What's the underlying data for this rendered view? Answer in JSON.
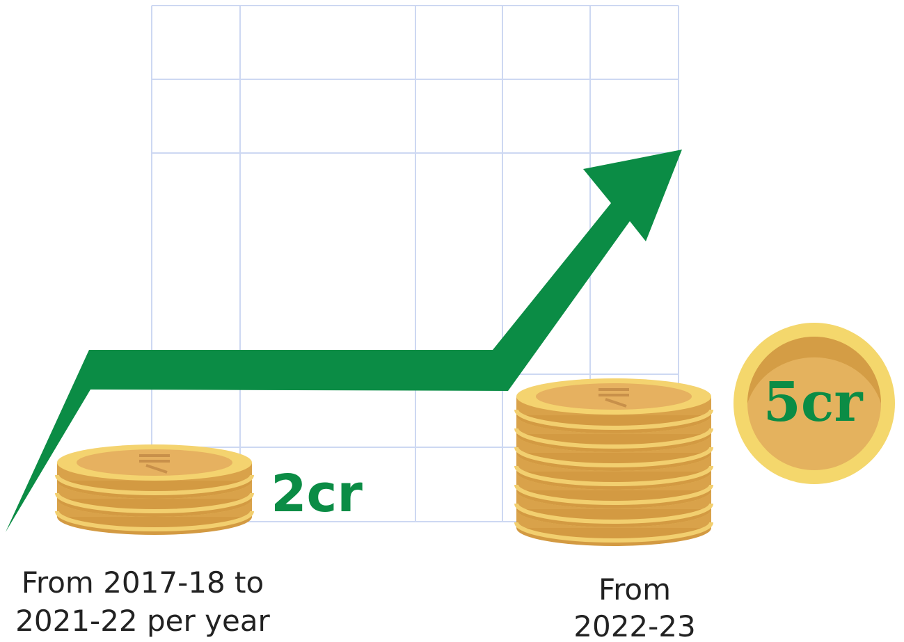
{
  "left": {
    "value": "2cr",
    "label_lines": [
      "From 2017-18 to",
      "2021-22 per year"
    ]
  },
  "right": {
    "value": "5cr",
    "label_lines": [
      "From",
      "2022-23"
    ]
  }
}
